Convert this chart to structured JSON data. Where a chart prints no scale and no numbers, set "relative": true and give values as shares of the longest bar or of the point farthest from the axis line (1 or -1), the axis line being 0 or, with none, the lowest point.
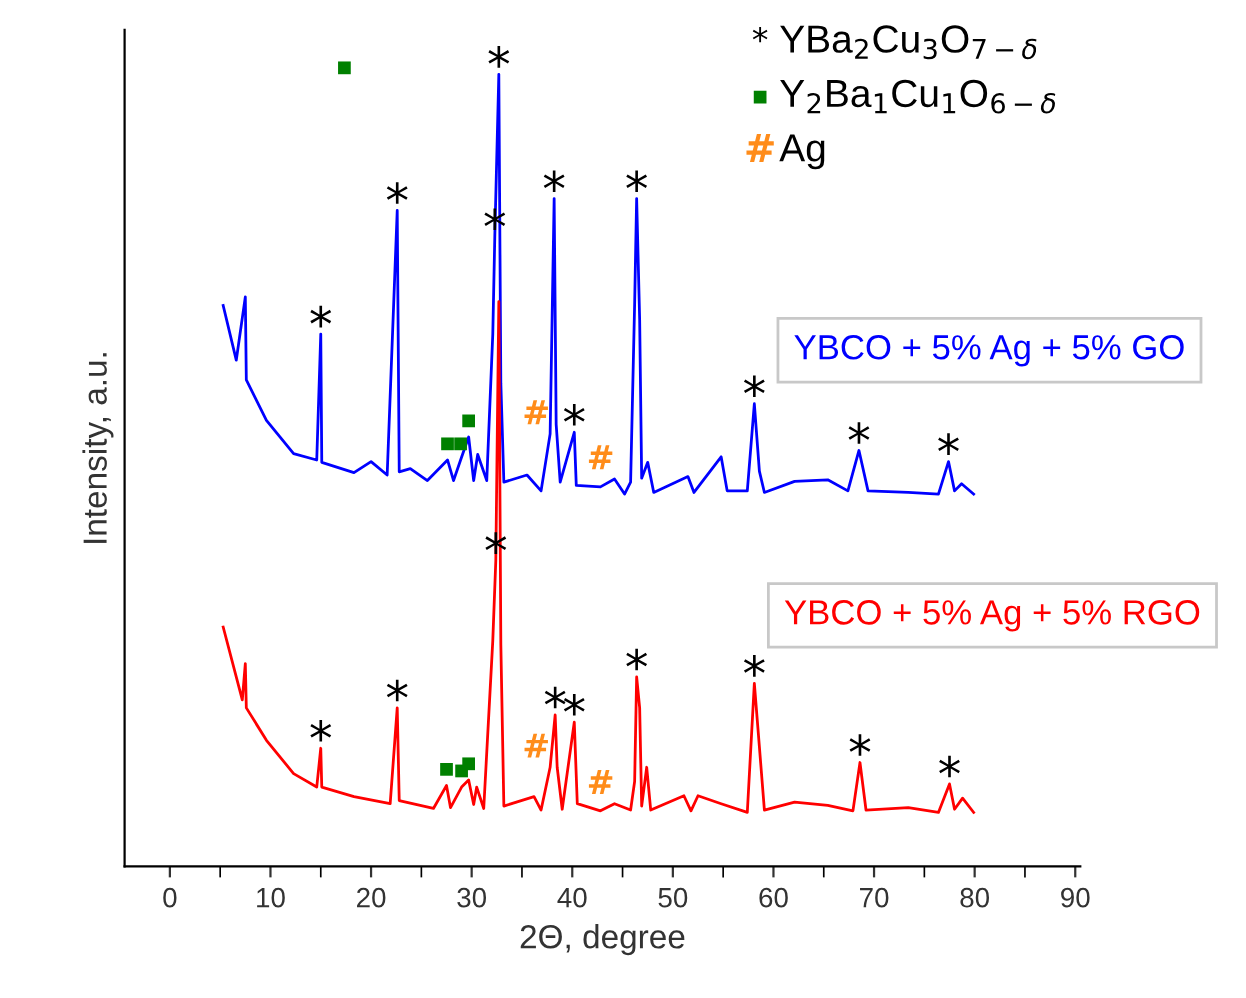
{
  "chart_data": {
    "type": "line",
    "relative": true,
    "xlabel": "2Θ, degree",
    "ylabel": "Intensity, a.u.",
    "xlim": [
      -4.5,
      90.5
    ],
    "xticks": [
      0,
      10,
      20,
      30,
      40,
      50,
      60,
      70,
      80,
      90
    ],
    "tick_labels": "x",
    "grid": false,
    "series": [
      {
        "name": "YBCO + 5% Ag + 5% GO",
        "color": "#0000ff",
        "x": [
          5.3,
          6.6,
          7.5,
          7.6,
          9.6,
          12.3,
          14.6,
          15.0,
          15.1,
          18.3,
          20.0,
          21.6,
          22.6,
          22.8,
          23.9,
          25.6,
          27.6,
          28.2,
          28.9,
          29.7,
          30.2,
          30.6,
          31.5,
          32.1,
          32.3,
          32.7,
          32.9,
          33.2,
          35.5,
          36.9,
          37.8,
          38.2,
          38.4,
          38.8,
          40.2,
          40.4,
          42.8,
          44.2,
          45.2,
          45.8,
          46.2,
          46.4,
          46.7,
          46.9,
          47.5,
          48.1,
          51.5,
          52.1,
          54.8,
          55.4,
          57.4,
          58.1,
          58.6,
          59.1,
          62.1,
          65.4,
          67.4,
          68.5,
          69.4,
          73.4,
          76.4,
          77.4,
          78.0,
          78.7,
          79.9
        ],
        "values": [
          0.708,
          0.639,
          0.719,
          0.614,
          0.563,
          0.521,
          0.513,
          0.672,
          0.51,
          0.497,
          0.511,
          0.494,
          0.828,
          0.498,
          0.502,
          0.487,
          0.513,
          0.487,
          0.513,
          0.542,
          0.487,
          0.52,
          0.487,
          0.672,
          0.795,
          1,
          0.61,
          0.485,
          0.494,
          0.474,
          0.546,
          0.843,
          0.558,
          0.485,
          0.548,
          0.481,
          0.479,
          0.489,
          0.47,
          0.485,
          0.71,
          0.843,
          0.69,
          0.49,
          0.51,
          0.472,
          0.492,
          0.472,
          0.517,
          0.474,
          0.474,
          0.584,
          0.499,
          0.472,
          0.486,
          0.488,
          0.474,
          0.525,
          0.474,
          0.472,
          0.47,
          0.511,
          0.474,
          0.483,
          0.47
        ]
      },
      {
        "name": "YBCO + 5% Ag + 5% RGO",
        "color": "#ff0000",
        "x": [
          5.3,
          7.2,
          7.5,
          7.6,
          9.6,
          12.3,
          14.6,
          15.0,
          15.1,
          18.3,
          21.9,
          22.6,
          22.8,
          26.2,
          27.5,
          27.9,
          29.0,
          29.7,
          30.2,
          30.5,
          31.2,
          32.1,
          32.4,
          32.7,
          32.9,
          33.2,
          36.2,
          36.9,
          37.8,
          38.3,
          38.5,
          39.0,
          40.2,
          40.5,
          42.8,
          44.2,
          45.8,
          46.2,
          46.4,
          46.7,
          46.9,
          47.4,
          47.8,
          51.1,
          51.8,
          52.5,
          54.8,
          57.4,
          58.1,
          58.6,
          59.1,
          62.1,
          65.4,
          67.9,
          68.6,
          69.2,
          73.4,
          76.4,
          77.5,
          78.0,
          78.8,
          79.9
        ],
        "values": [
          0.302,
          0.21,
          0.256,
          0.2,
          0.159,
          0.117,
          0.1,
          0.149,
          0.1,
          0.088,
          0.079,
          0.2,
          0.083,
          0.073,
          0.102,
          0.074,
          0.1,
          0.109,
          0.078,
          0.1,
          0.073,
          0.285,
          0.386,
          0.713,
          0.28,
          0.076,
          0.088,
          0.071,
          0.125,
          0.191,
          0.125,
          0.072,
          0.182,
          0.079,
          0.07,
          0.079,
          0.071,
          0.107,
          0.239,
          0.2,
          0.076,
          0.125,
          0.071,
          0.089,
          0.07,
          0.089,
          0.079,
          0.068,
          0.231,
          0.151,
          0.071,
          0.081,
          0.077,
          0.07,
          0.131,
          0.071,
          0.074,
          0.068,
          0.104,
          0.072,
          0.086,
          0.068
        ]
      }
    ],
    "legend": "right",
    "annotations": [
      "YBa$_{2}$Cu$_{3}$O$_{7−δ}$",
      "Y$_{2}$Ba$_{1}$Cu$_{1}$O$_{6−δ}$",
      "Ag",
      "■",
      {
        "text": "*",
        "x": 15.0,
        "y": 0.672
      },
      {
        "text": "*",
        "x": 22.6,
        "y": 0.828
      },
      {
        "text": "*",
        "x": 32.7,
        "y": 1
      },
      {
        "text": "*",
        "x": 32.3,
        "y": 0.795
      },
      {
        "text": "*",
        "x": 38.2,
        "y": 0.843
      },
      {
        "text": "*",
        "x": 40.2,
        "y": 0.548
      },
      {
        "text": "*",
        "x": 46.4,
        "y": 0.843
      },
      {
        "text": "*",
        "x": 58.1,
        "y": 0.584
      },
      {
        "text": "*",
        "x": 68.5,
        "y": 0.525
      },
      {
        "text": "*",
        "x": 77.4,
        "y": 0.511
      },
      {
        "text": "*",
        "x": 15.0,
        "y": 0.149
      },
      {
        "text": "*",
        "x": 22.6,
        "y": 0.2
      },
      {
        "text": "*",
        "x": 32.4,
        "y": 0.386
      },
      {
        "text": "*",
        "x": 38.3,
        "y": 0.191
      },
      {
        "text": "*",
        "x": 40.2,
        "y": 0.182
      },
      {
        "text": "*",
        "x": 46.4,
        "y": 0.239
      },
      {
        "text": "*",
        "x": 58.1,
        "y": 0.231
      },
      {
        "text": "*",
        "x": 68.6,
        "y": 0.131
      },
      {
        "text": "*",
        "x": 77.5,
        "y": 0.104
      },
      {
        "text": "■",
        "x": 27.6,
        "y": 0.513
      },
      {
        "text": "■",
        "x": 28.9,
        "y": 0.513
      },
      {
        "text": "■",
        "x": 29.7,
        "y": 0.542
      },
      {
        "text": "■",
        "x": 27.5,
        "y": 0.102
      },
      {
        "text": "■",
        "x": 29.0,
        "y": 0.1
      },
      {
        "text": "■",
        "x": 29.7,
        "y": 0.109
      },
      {
        "text": "#",
        "x": 37.8,
        "y": 0.546
      },
      {
        "text": "#",
        "x": 44.2,
        "y": 0.489
      },
      {
        "text": "#",
        "x": 37.8,
        "y": 0.125
      },
      {
        "text": "#",
        "x": 44.2,
        "y": 0.079
      }
    ]
  }
}
